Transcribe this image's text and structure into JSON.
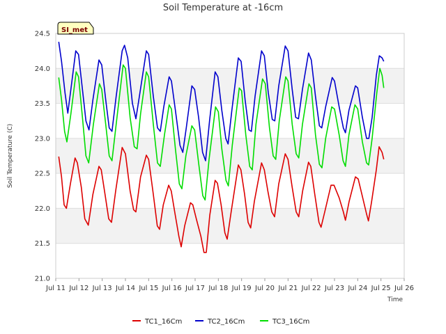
{
  "chart_data": {
    "type": "line",
    "title": "Soil Temperature at -16cm",
    "xlabel": "Time",
    "ylabel": "Soil Temperature (C)",
    "xlim": [
      11,
      26
    ],
    "ylim": [
      21.0,
      24.5
    ],
    "x_ticks": [
      11,
      12,
      13,
      14,
      15,
      16,
      17,
      18,
      19,
      20,
      21,
      22,
      23,
      24,
      25,
      26
    ],
    "x_tick_labels": [
      "Jul 11",
      "Jul 12",
      "Jul 13",
      "Jul 14",
      "Jul 15",
      "Jul 16",
      "Jul 17",
      "Jul 18",
      "Jul 19",
      "Jul 20",
      "Jul 21",
      "Jul 22",
      "Jul 23",
      "Jul 24",
      "Jul 25",
      "Jul 26"
    ],
    "y_ticks": [
      21.0,
      21.5,
      22.0,
      22.5,
      23.0,
      23.5,
      24.0,
      24.5
    ],
    "y_tick_labels": [
      "21.0",
      "21.5",
      "22.0",
      "22.5",
      "23.0",
      "23.5",
      "24.0",
      "24.5"
    ],
    "badge": "SI_met",
    "legend_position": "bottom-center",
    "series": [
      {
        "name": "TC1_16Cm",
        "color": "#dd0000",
        "points": [
          [
            11.13,
            22.74
          ],
          [
            11.25,
            22.45
          ],
          [
            11.36,
            22.05
          ],
          [
            11.46,
            22.0
          ],
          [
            11.63,
            22.35
          ],
          [
            11.83,
            22.72
          ],
          [
            11.93,
            22.65
          ],
          [
            12.1,
            22.3
          ],
          [
            12.25,
            21.85
          ],
          [
            12.4,
            21.76
          ],
          [
            12.6,
            22.2
          ],
          [
            12.86,
            22.6
          ],
          [
            12.96,
            22.55
          ],
          [
            13.12,
            22.2
          ],
          [
            13.28,
            21.85
          ],
          [
            13.4,
            21.8
          ],
          [
            13.58,
            22.25
          ],
          [
            13.86,
            22.87
          ],
          [
            14.0,
            22.78
          ],
          [
            14.2,
            22.25
          ],
          [
            14.35,
            21.98
          ],
          [
            14.45,
            21.95
          ],
          [
            14.65,
            22.45
          ],
          [
            14.9,
            22.76
          ],
          [
            15.0,
            22.7
          ],
          [
            15.2,
            22.2
          ],
          [
            15.37,
            21.75
          ],
          [
            15.47,
            21.7
          ],
          [
            15.63,
            22.05
          ],
          [
            15.86,
            22.33
          ],
          [
            15.97,
            22.25
          ],
          [
            16.12,
            21.95
          ],
          [
            16.3,
            21.6
          ],
          [
            16.4,
            21.45
          ],
          [
            16.55,
            21.75
          ],
          [
            16.8,
            22.08
          ],
          [
            16.9,
            22.05
          ],
          [
            17.05,
            21.85
          ],
          [
            17.25,
            21.6
          ],
          [
            17.38,
            21.37
          ],
          [
            17.48,
            21.37
          ],
          [
            17.63,
            21.9
          ],
          [
            17.86,
            22.4
          ],
          [
            17.96,
            22.36
          ],
          [
            18.12,
            22.05
          ],
          [
            18.28,
            21.65
          ],
          [
            18.38,
            21.56
          ],
          [
            18.55,
            21.95
          ],
          [
            18.86,
            22.62
          ],
          [
            18.97,
            22.55
          ],
          [
            19.13,
            22.2
          ],
          [
            19.28,
            21.8
          ],
          [
            19.39,
            21.72
          ],
          [
            19.55,
            22.1
          ],
          [
            19.86,
            22.65
          ],
          [
            19.98,
            22.55
          ],
          [
            20.13,
            22.25
          ],
          [
            20.3,
            21.95
          ],
          [
            20.42,
            21.88
          ],
          [
            20.6,
            22.35
          ],
          [
            20.88,
            22.78
          ],
          [
            21.0,
            22.7
          ],
          [
            21.18,
            22.3
          ],
          [
            21.35,
            21.95
          ],
          [
            21.46,
            21.88
          ],
          [
            21.63,
            22.25
          ],
          [
            21.88,
            22.66
          ],
          [
            21.98,
            22.6
          ],
          [
            22.15,
            22.2
          ],
          [
            22.33,
            21.8
          ],
          [
            22.42,
            21.73
          ],
          [
            22.58,
            21.95
          ],
          [
            22.85,
            22.33
          ],
          [
            22.98,
            22.33
          ],
          [
            23.2,
            22.15
          ],
          [
            23.38,
            21.95
          ],
          [
            23.47,
            21.83
          ],
          [
            23.63,
            22.1
          ],
          [
            23.9,
            22.45
          ],
          [
            24.02,
            22.42
          ],
          [
            24.18,
            22.2
          ],
          [
            24.38,
            21.92
          ],
          [
            24.46,
            21.82
          ],
          [
            24.6,
            22.1
          ],
          [
            24.8,
            22.55
          ],
          [
            24.92,
            22.88
          ],
          [
            25.05,
            22.8
          ],
          [
            25.12,
            22.7
          ]
        ]
      },
      {
        "name": "TC2_16Cm",
        "color": "#0000cc",
        "points": [
          [
            11.13,
            24.38
          ],
          [
            11.25,
            24.1
          ],
          [
            11.4,
            23.65
          ],
          [
            11.52,
            23.36
          ],
          [
            11.65,
            23.7
          ],
          [
            11.86,
            24.25
          ],
          [
            11.98,
            24.2
          ],
          [
            12.15,
            23.7
          ],
          [
            12.3,
            23.25
          ],
          [
            12.43,
            23.12
          ],
          [
            12.6,
            23.55
          ],
          [
            12.86,
            24.12
          ],
          [
            12.98,
            24.05
          ],
          [
            13.15,
            23.55
          ],
          [
            13.3,
            23.15
          ],
          [
            13.42,
            23.1
          ],
          [
            13.6,
            23.6
          ],
          [
            13.86,
            24.25
          ],
          [
            13.96,
            24.33
          ],
          [
            14.1,
            24.15
          ],
          [
            14.3,
            23.5
          ],
          [
            14.45,
            23.28
          ],
          [
            14.6,
            23.6
          ],
          [
            14.9,
            24.25
          ],
          [
            15.0,
            24.2
          ],
          [
            15.2,
            23.6
          ],
          [
            15.38,
            23.15
          ],
          [
            15.5,
            23.1
          ],
          [
            15.65,
            23.45
          ],
          [
            15.88,
            23.88
          ],
          [
            15.98,
            23.82
          ],
          [
            16.15,
            23.4
          ],
          [
            16.35,
            22.9
          ],
          [
            16.47,
            22.8
          ],
          [
            16.62,
            23.15
          ],
          [
            16.86,
            23.75
          ],
          [
            16.98,
            23.7
          ],
          [
            17.15,
            23.3
          ],
          [
            17.32,
            22.8
          ],
          [
            17.45,
            22.68
          ],
          [
            17.62,
            23.25
          ],
          [
            17.86,
            23.95
          ],
          [
            17.98,
            23.88
          ],
          [
            18.15,
            23.4
          ],
          [
            18.32,
            23.0
          ],
          [
            18.42,
            22.92
          ],
          [
            18.58,
            23.4
          ],
          [
            18.86,
            24.15
          ],
          [
            18.98,
            24.1
          ],
          [
            19.15,
            23.55
          ],
          [
            19.32,
            23.12
          ],
          [
            19.42,
            23.1
          ],
          [
            19.58,
            23.6
          ],
          [
            19.86,
            24.25
          ],
          [
            19.98,
            24.18
          ],
          [
            20.15,
            23.65
          ],
          [
            20.32,
            23.27
          ],
          [
            20.43,
            23.25
          ],
          [
            20.6,
            23.75
          ],
          [
            20.88,
            24.32
          ],
          [
            21.0,
            24.25
          ],
          [
            21.18,
            23.7
          ],
          [
            21.33,
            23.3
          ],
          [
            21.45,
            23.28
          ],
          [
            21.62,
            23.7
          ],
          [
            21.88,
            24.22
          ],
          [
            22.0,
            24.12
          ],
          [
            22.18,
            23.6
          ],
          [
            22.35,
            23.18
          ],
          [
            22.45,
            23.15
          ],
          [
            22.62,
            23.45
          ],
          [
            22.9,
            23.87
          ],
          [
            23.0,
            23.82
          ],
          [
            23.2,
            23.45
          ],
          [
            23.38,
            23.15
          ],
          [
            23.47,
            23.08
          ],
          [
            23.62,
            23.4
          ],
          [
            23.9,
            23.75
          ],
          [
            24.0,
            23.72
          ],
          [
            24.2,
            23.3
          ],
          [
            24.38,
            23.0
          ],
          [
            24.48,
            23.0
          ],
          [
            24.62,
            23.3
          ],
          [
            24.8,
            23.9
          ],
          [
            24.93,
            24.18
          ],
          [
            25.05,
            24.15
          ],
          [
            25.12,
            24.1
          ]
        ]
      },
      {
        "name": "TC3_16Cm",
        "color": "#00dd00",
        "points": [
          [
            11.13,
            23.87
          ],
          [
            11.25,
            23.55
          ],
          [
            11.38,
            23.1
          ],
          [
            11.48,
            22.95
          ],
          [
            11.65,
            23.35
          ],
          [
            11.88,
            23.95
          ],
          [
            11.98,
            23.88
          ],
          [
            12.15,
            23.3
          ],
          [
            12.3,
            22.75
          ],
          [
            12.42,
            22.65
          ],
          [
            12.62,
            23.2
          ],
          [
            12.88,
            23.78
          ],
          [
            12.98,
            23.7
          ],
          [
            13.15,
            23.2
          ],
          [
            13.3,
            22.75
          ],
          [
            13.42,
            22.68
          ],
          [
            13.6,
            23.2
          ],
          [
            13.9,
            24.05
          ],
          [
            14.0,
            24.0
          ],
          [
            14.2,
            23.3
          ],
          [
            14.38,
            22.88
          ],
          [
            14.5,
            22.85
          ],
          [
            14.65,
            23.35
          ],
          [
            14.9,
            23.95
          ],
          [
            15.0,
            23.88
          ],
          [
            15.2,
            23.2
          ],
          [
            15.38,
            22.65
          ],
          [
            15.5,
            22.6
          ],
          [
            15.68,
            23.05
          ],
          [
            15.88,
            23.48
          ],
          [
            15.98,
            23.42
          ],
          [
            16.15,
            22.85
          ],
          [
            16.32,
            22.35
          ],
          [
            16.43,
            22.28
          ],
          [
            16.6,
            22.75
          ],
          [
            16.86,
            23.18
          ],
          [
            16.98,
            23.12
          ],
          [
            17.15,
            22.65
          ],
          [
            17.33,
            22.18
          ],
          [
            17.43,
            22.12
          ],
          [
            17.6,
            22.7
          ],
          [
            17.88,
            23.45
          ],
          [
            18.0,
            23.38
          ],
          [
            18.15,
            22.85
          ],
          [
            18.33,
            22.4
          ],
          [
            18.43,
            22.32
          ],
          [
            18.6,
            22.9
          ],
          [
            18.9,
            23.72
          ],
          [
            19.0,
            23.68
          ],
          [
            19.18,
            23.05
          ],
          [
            19.35,
            22.6
          ],
          [
            19.46,
            22.55
          ],
          [
            19.62,
            23.2
          ],
          [
            19.9,
            23.85
          ],
          [
            20.02,
            23.78
          ],
          [
            20.2,
            23.15
          ],
          [
            20.36,
            22.75
          ],
          [
            20.47,
            22.7
          ],
          [
            20.62,
            23.25
          ],
          [
            20.9,
            23.88
          ],
          [
            21.0,
            23.82
          ],
          [
            21.18,
            23.2
          ],
          [
            21.35,
            22.78
          ],
          [
            21.46,
            22.72
          ],
          [
            21.62,
            23.2
          ],
          [
            21.9,
            23.78
          ],
          [
            22.0,
            23.72
          ],
          [
            22.18,
            23.05
          ],
          [
            22.35,
            22.63
          ],
          [
            22.46,
            22.58
          ],
          [
            22.62,
            23.0
          ],
          [
            22.88,
            23.45
          ],
          [
            23.0,
            23.42
          ],
          [
            23.2,
            23.05
          ],
          [
            23.37,
            22.68
          ],
          [
            23.47,
            22.6
          ],
          [
            23.62,
            23.05
          ],
          [
            23.88,
            23.48
          ],
          [
            24.0,
            23.42
          ],
          [
            24.2,
            22.95
          ],
          [
            24.38,
            22.65
          ],
          [
            24.47,
            22.62
          ],
          [
            24.62,
            23.0
          ],
          [
            24.82,
            23.65
          ],
          [
            24.95,
            24.0
          ],
          [
            25.05,
            23.9
          ],
          [
            25.12,
            23.72
          ]
        ]
      }
    ]
  }
}
